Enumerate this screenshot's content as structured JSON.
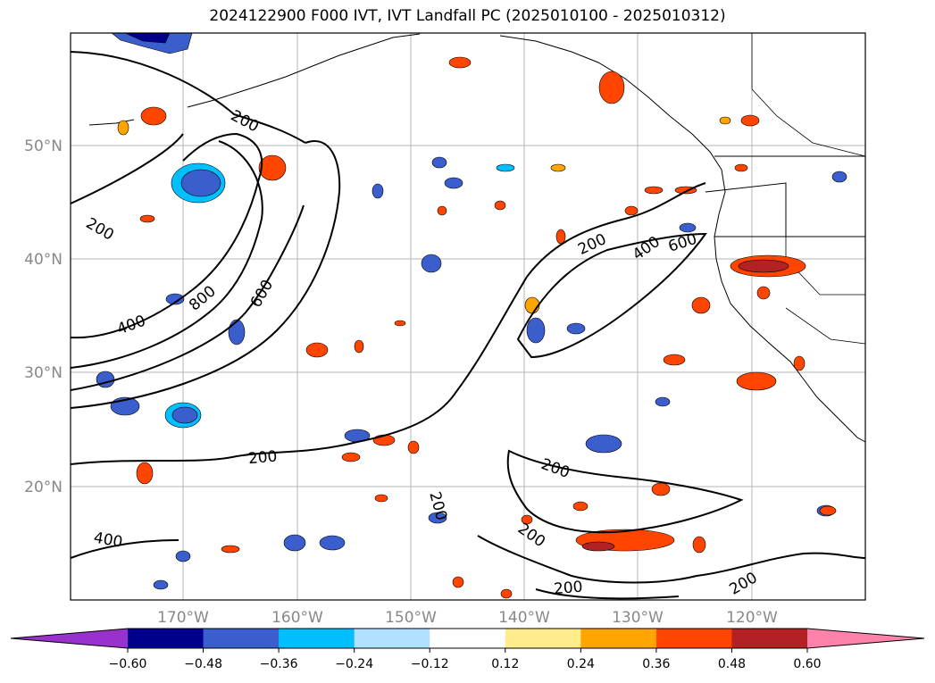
{
  "title": "2024122900 F000 IVT, IVT Landfall PC (2025010100 - 2025010312)",
  "map": {
    "lat_labels": [
      "50°N",
      "40°N",
      "30°N",
      "20°N"
    ],
    "lon_labels": [
      "170°W",
      "160°W",
      "150°W",
      "140°W",
      "130°W",
      "120°W"
    ],
    "contour_levels": [
      "200",
      "400",
      "600",
      "800"
    ],
    "contour_labels": [
      {
        "text": "200"
      },
      {
        "text": "200"
      },
      {
        "text": "400"
      },
      {
        "text": "800"
      },
      {
        "text": "600"
      },
      {
        "text": "200"
      },
      {
        "text": "400"
      },
      {
        "text": "600"
      },
      {
        "text": "200"
      },
      {
        "text": "200"
      },
      {
        "text": "200"
      },
      {
        "text": "400"
      },
      {
        "text": "200"
      },
      {
        "text": "200"
      },
      {
        "text": "200"
      }
    ]
  },
  "colorbar": {
    "colors": [
      "#9932cc",
      "#00008b",
      "#3a5fcd",
      "#00bfff",
      "#b0e2ff",
      "#ffffff",
      "#ffec8b",
      "#ffa500",
      "#ff4500",
      "#b22222",
      "#ff82ab"
    ],
    "tick_labels": [
      "−0.60",
      "−0.48",
      "−0.36",
      "−0.24",
      "−0.12",
      "0.12",
      "0.24",
      "0.36",
      "0.48",
      "0.60"
    ]
  }
}
